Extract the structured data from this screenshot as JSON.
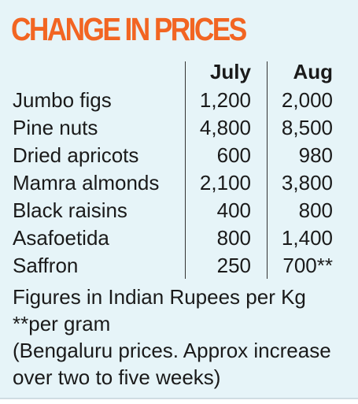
{
  "title": "CHANGE IN PRICES",
  "columns": {
    "item": "",
    "july": "July",
    "aug": "Aug"
  },
  "rows": [
    {
      "item": "Jumbo figs",
      "july": "1,200",
      "aug": "2,000"
    },
    {
      "item": "Pine nuts",
      "july": "4,800",
      "aug": "8,500"
    },
    {
      "item": "Dried apricots",
      "july": "600",
      "aug": "980"
    },
    {
      "item": "Mamra almonds",
      "july": "2,100",
      "aug": "3,800"
    },
    {
      "item": "Black raisins",
      "july": "400",
      "aug": "800"
    },
    {
      "item": "Asafoetida",
      "july": "800",
      "aug": "1,400"
    },
    {
      "item": "Saffron",
      "july": "250",
      "aug": "700**"
    }
  ],
  "notes": [
    "Figures in Indian Rupees per Kg",
    "**per gram",
    "(Bengaluru prices. Approx increase",
    "over two to five weeks)"
  ],
  "colors": {
    "title": "#f26522",
    "background": "#e6f4f8",
    "text": "#1a1a1a"
  }
}
